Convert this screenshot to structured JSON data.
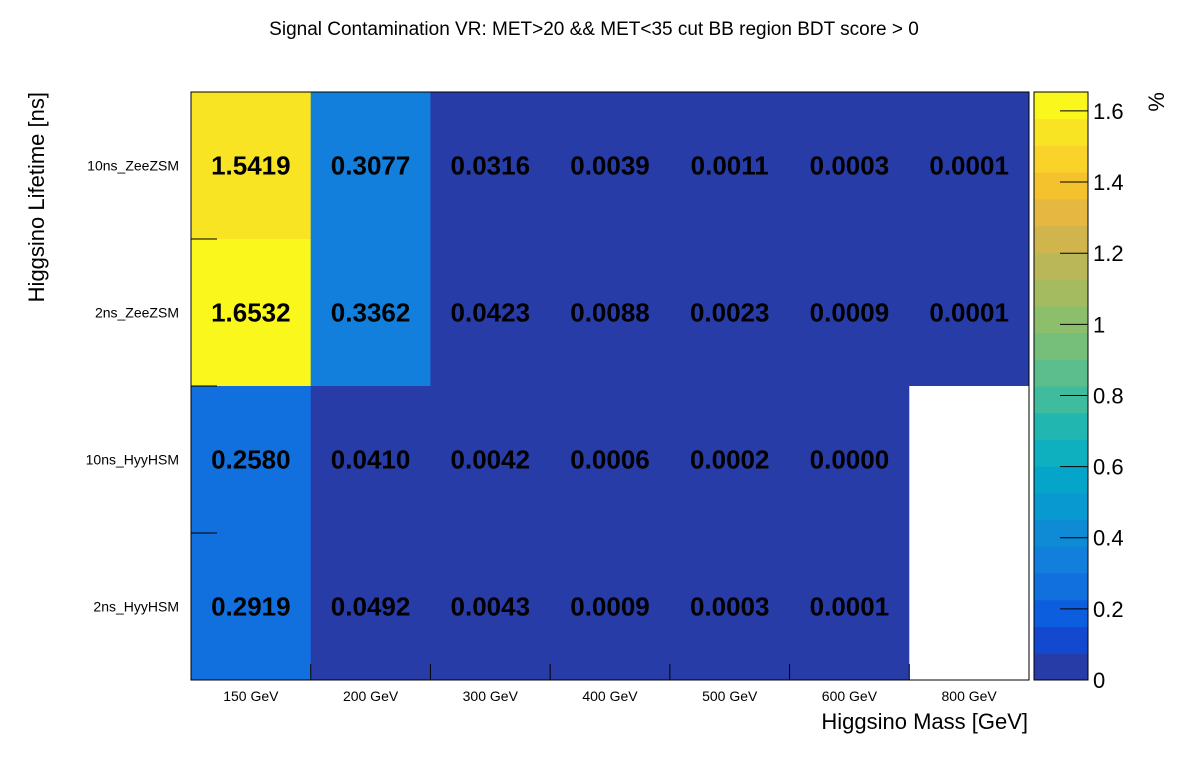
{
  "chart_data": {
    "type": "heatmap",
    "title": "Signal Contamination VR: MET>20 && MET<35 cut BB region BDT score > 0",
    "xlabel": "Higgsino Mass [GeV]",
    "ylabel": "Higgsino Lifetime [ns]",
    "colorbar_label": "%",
    "x_categories": [
      "150 GeV",
      "200 GeV",
      "300 GeV",
      "400 GeV",
      "500 GeV",
      "600 GeV",
      "800 GeV"
    ],
    "y_categories": [
      "10ns_ZeeZSM",
      "2ns_ZeeZSM",
      "10ns_HyyHSM",
      "2ns_HyyHSM"
    ],
    "values": [
      [
        1.5419,
        0.3077,
        0.0316,
        0.0039,
        0.0011,
        0.0003,
        0.0001
      ],
      [
        1.6532,
        0.3362,
        0.0423,
        0.0088,
        0.0023,
        0.0009,
        0.0001
      ],
      [
        0.258,
        0.041,
        0.0042,
        0.0006,
        0.0002,
        0.0,
        null
      ],
      [
        0.2919,
        0.0492,
        0.0043,
        0.0009,
        0.0003,
        0.0001,
        null
      ]
    ],
    "value_labels": [
      [
        "1.5419",
        "0.3077",
        "0.0316",
        "0.0039",
        "0.0011",
        "0.0003",
        "0.0001"
      ],
      [
        "1.6532",
        "0.3362",
        "0.0423",
        "0.0088",
        "0.0023",
        "0.0009",
        "0.0001"
      ],
      [
        "0.2580",
        "0.0410",
        "0.0042",
        "0.0006",
        "0.0002",
        "0.0000",
        ""
      ],
      [
        "0.2919",
        "0.0492",
        "0.0043",
        "0.0009",
        "0.0003",
        "0.0001",
        ""
      ]
    ],
    "zlim": [
      0,
      1.6532
    ],
    "colorbar_ticks": [
      0,
      0.2,
      0.4,
      0.6,
      0.8,
      1,
      1.2,
      1.4,
      1.6
    ],
    "colorbar_tick_labels": [
      "0",
      "0.2",
      "0.4",
      "0.6",
      "0.8",
      "1",
      "1.2",
      "1.4",
      "1.6"
    ],
    "palette": [
      "#283ca8",
      "#1349ce",
      "#0d5ddf",
      "#1170dd",
      "#117fdb",
      "#0f8bd6",
      "#0799d0",
      "#04a5c8",
      "#0eb0bf",
      "#22b6b0",
      "#3fbb9d",
      "#5bbe8c",
      "#76bf7a",
      "#8dbe6c",
      "#a4bb5f",
      "#bab758",
      "#d0b54d",
      "#e6b842",
      "#f4c22d",
      "#f9d22a",
      "#f9e424",
      "#f9f71b"
    ],
    "empty_color": "#ffffff",
    "grid": false
  }
}
